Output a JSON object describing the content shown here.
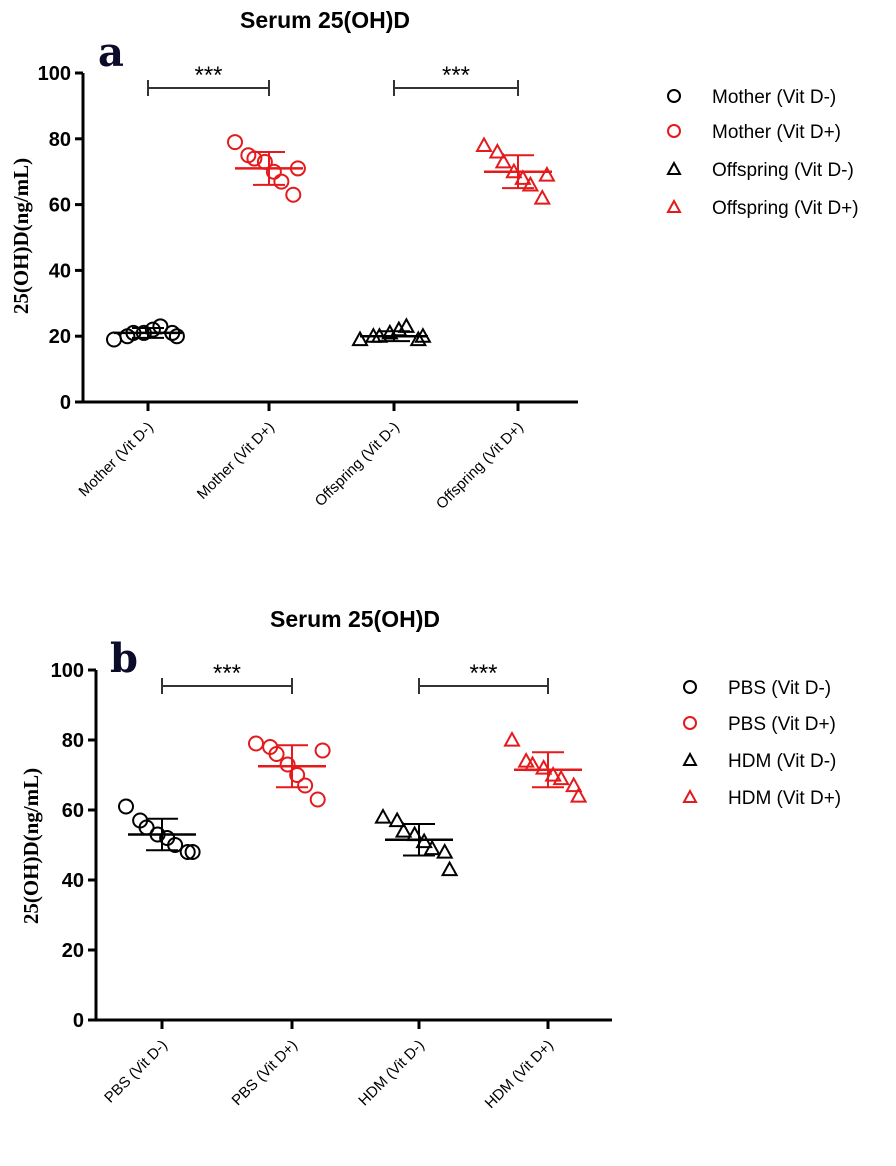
{
  "chart_data": [
    {
      "panel": "a",
      "type": "scatter",
      "title": "Serum 25(OH)D",
      "ylabel": "25(OH)D(ng/mL)",
      "xlabel": "",
      "ylim": [
        0,
        100
      ],
      "yticks": [
        0,
        20,
        40,
        60,
        80,
        100
      ],
      "categories": [
        "Mother (Vit D-)",
        "Mother (Vit D+)",
        "Offspring (Vit D-)",
        "Offspring (Vit D+)"
      ],
      "series": [
        {
          "name": "Mother (Vit D-)",
          "category": 0,
          "marker": "circle",
          "color": "#000000",
          "mean": 21,
          "sd": 1.5,
          "points": [
            19,
            20,
            21,
            21,
            22,
            23,
            21,
            20
          ]
        },
        {
          "name": "Mother (Vit D+)",
          "category": 1,
          "marker": "circle",
          "color": "#e41a1c",
          "mean": 71,
          "sd": 5,
          "points": [
            79,
            75,
            74,
            73,
            70,
            67,
            63,
            71
          ]
        },
        {
          "name": "Offspring (Vit D-)",
          "category": 2,
          "marker": "triangle",
          "color": "#000000",
          "mean": 20,
          "sd": 1.5,
          "points": [
            19,
            20,
            20,
            21,
            22,
            23,
            19,
            20
          ]
        },
        {
          "name": "Offspring (Vit D+)",
          "category": 3,
          "marker": "triangle",
          "color": "#e41a1c",
          "mean": 70,
          "sd": 5,
          "points": [
            78,
            76,
            73,
            70,
            68,
            66,
            62,
            69
          ]
        }
      ],
      "significance": [
        {
          "from": 0,
          "to": 1,
          "label": "***"
        },
        {
          "from": 2,
          "to": 3,
          "label": "***"
        }
      ],
      "legend_position": "right"
    },
    {
      "panel": "b",
      "type": "scatter",
      "title": "Serum 25(OH)D",
      "ylabel": "25(OH)D(ng/mL)",
      "xlabel": "",
      "ylim": [
        0,
        100
      ],
      "yticks": [
        0,
        20,
        40,
        60,
        80,
        100
      ],
      "categories": [
        "PBS (Vit D-)",
        "PBS (Vit D+)",
        "HDM (Vit D-)",
        "HDM (Vit D+)"
      ],
      "series": [
        {
          "name": "PBS (Vit D-)",
          "category": 0,
          "marker": "circle",
          "color": "#000000",
          "mean": 53,
          "sd": 4.5,
          "points": [
            61,
            57,
            55,
            53,
            52,
            50,
            48,
            48
          ]
        },
        {
          "name": "PBS (Vit D+)",
          "category": 1,
          "marker": "circle",
          "color": "#e41a1c",
          "mean": 72.5,
          "sd": 6,
          "points": [
            79,
            78,
            76,
            73,
            70,
            67,
            63,
            77
          ]
        },
        {
          "name": "HDM (Vit D-)",
          "category": 2,
          "marker": "triangle",
          "color": "#000000",
          "mean": 51.5,
          "sd": 4.5,
          "points": [
            58,
            57,
            54,
            53,
            51,
            49,
            48,
            43
          ]
        },
        {
          "name": "HDM (Vit D+)",
          "category": 3,
          "marker": "triangle",
          "color": "#e41a1c",
          "mean": 71.5,
          "sd": 5,
          "points": [
            80,
            74,
            73,
            72,
            70,
            69,
            67,
            64
          ]
        }
      ],
      "significance": [
        {
          "from": 0,
          "to": 1,
          "label": "***"
        },
        {
          "from": 2,
          "to": 3,
          "label": "***"
        }
      ],
      "legend_position": "right"
    }
  ]
}
